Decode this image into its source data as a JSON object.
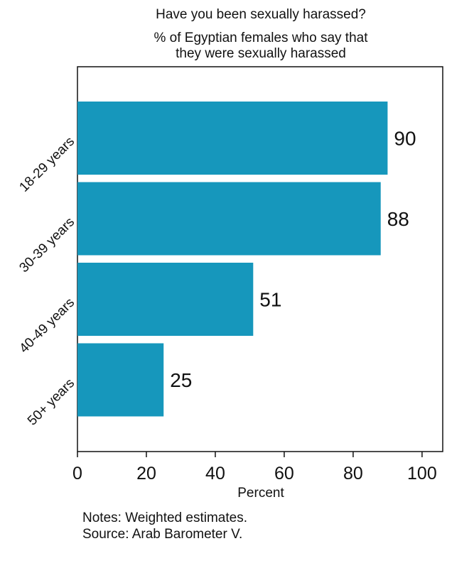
{
  "chart_data": {
    "type": "bar",
    "orientation": "horizontal",
    "title": "Have you been sexually harassed?",
    "subtitle_lines": [
      "% of Egyptian females who say that",
      "they were sexually harassed"
    ],
    "categories": [
      "18-29 years",
      "30-39 years",
      "40-49 years",
      "50+ years"
    ],
    "values": [
      90,
      88,
      51,
      25
    ],
    "data_labels": [
      "90",
      "88",
      "51",
      "25"
    ],
    "xlabel": "Percent",
    "ylabel": "",
    "xlim": [
      0,
      106
    ],
    "x_ticks": [
      0,
      20,
      40,
      60,
      80,
      100
    ],
    "x_tick_labels": [
      "0",
      "20",
      "40",
      "60",
      "80",
      "100"
    ],
    "grid": false,
    "bar_color": "#1697bc",
    "notes": [
      "Notes: Weighted estimates.",
      "Source: Arab Barometer V."
    ]
  }
}
